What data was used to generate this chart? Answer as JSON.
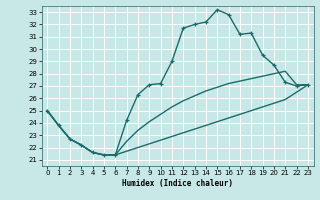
{
  "xlabel": "Humidex (Indice chaleur)",
  "bg_color": "#c8e8e8",
  "grid_color": "#ffffff",
  "line_color": "#1a6b6b",
  "xlim": [
    -0.5,
    23.5
  ],
  "ylim": [
    20.5,
    33.5
  ],
  "yticks": [
    21,
    22,
    23,
    24,
    25,
    26,
    27,
    28,
    29,
    30,
    31,
    32,
    33
  ],
  "xticks": [
    0,
    1,
    2,
    3,
    4,
    5,
    6,
    7,
    8,
    9,
    10,
    11,
    12,
    13,
    14,
    15,
    16,
    17,
    18,
    19,
    20,
    21,
    22,
    23
  ],
  "line_main": [
    25.0,
    23.8,
    22.7,
    22.2,
    21.6,
    21.4,
    21.4,
    24.2,
    26.3,
    27.1,
    27.2,
    29.0,
    31.7,
    32.0,
    32.2,
    33.2,
    32.8,
    31.2,
    31.3,
    29.5,
    28.7,
    27.3,
    27.0,
    27.1
  ],
  "line_upper": [
    25.0,
    23.8,
    22.7,
    22.2,
    21.6,
    21.4,
    21.4,
    22.5,
    23.4,
    24.1,
    24.7,
    25.3,
    25.8,
    26.2,
    26.6,
    26.9,
    27.2,
    27.4,
    27.6,
    27.8,
    28.0,
    28.2,
    27.1,
    27.1
  ],
  "line_lower": [
    25.0,
    23.8,
    22.7,
    22.2,
    21.6,
    21.4,
    21.4,
    21.7,
    22.0,
    22.3,
    22.6,
    22.9,
    23.2,
    23.5,
    23.8,
    24.1,
    24.4,
    24.7,
    25.0,
    25.3,
    25.6,
    25.9,
    26.5,
    27.1
  ]
}
